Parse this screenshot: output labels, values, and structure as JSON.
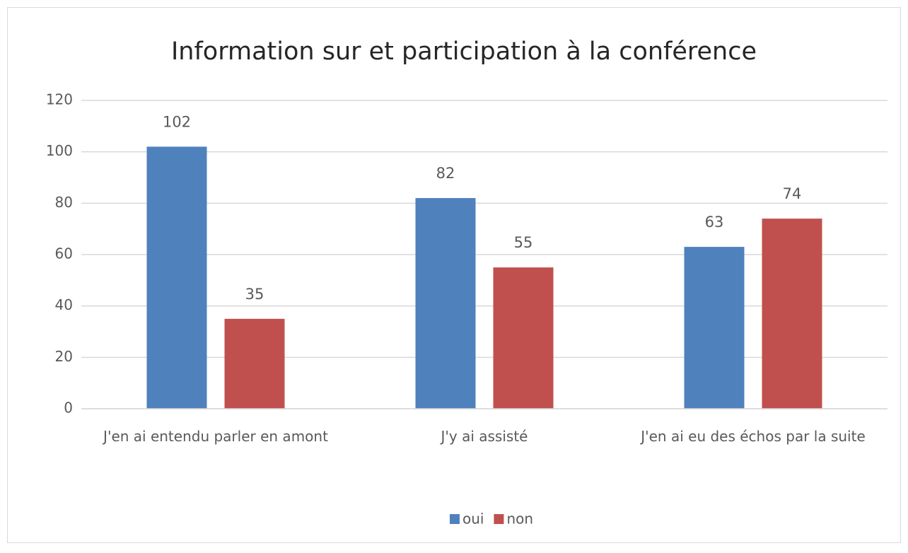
{
  "chart_data": {
    "type": "bar",
    "title": "Information sur et participation à la conférence",
    "categories": [
      "J'en ai entendu parler en amont",
      "J'y ai assisté",
      "J'en ai eu des échos par la suite"
    ],
    "series": [
      {
        "name": "oui",
        "color": "#4f81bd",
        "values": [
          102,
          82,
          63
        ]
      },
      {
        "name": "non",
        "color": "#c0504d",
        "values": [
          35,
          55,
          74
        ]
      }
    ],
    "ylim": [
      0,
      120
    ],
    "yticks": [
      0,
      20,
      40,
      60,
      80,
      100,
      120
    ],
    "grid": true,
    "legend": "bottom"
  }
}
